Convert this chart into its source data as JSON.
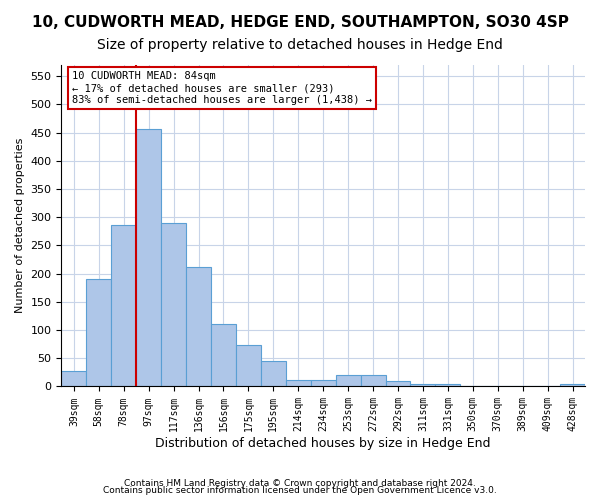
{
  "title1": "10, CUDWORTH MEAD, HEDGE END, SOUTHAMPTON, SO30 4SP",
  "title2": "Size of property relative to detached houses in Hedge End",
  "xlabel": "Distribution of detached houses by size in Hedge End",
  "ylabel": "Number of detached properties",
  "categories": [
    "39sqm",
    "58sqm",
    "78sqm",
    "97sqm",
    "117sqm",
    "136sqm",
    "156sqm",
    "175sqm",
    "195sqm",
    "214sqm",
    "234sqm",
    "253sqm",
    "272sqm",
    "292sqm",
    "311sqm",
    "331sqm",
    "350sqm",
    "370sqm",
    "389sqm",
    "409sqm",
    "428sqm"
  ],
  "values": [
    28,
    190,
    287,
    457,
    290,
    212,
    110,
    74,
    46,
    12,
    12,
    20,
    20,
    9,
    5,
    5,
    0,
    0,
    0,
    0,
    5
  ],
  "bar_color": "#aec6e8",
  "bar_edge_color": "#5a9fd4",
  "vline_x": 2.5,
  "vline_color": "#cc0000",
  "annotation_text": "10 CUDWORTH MEAD: 84sqm\n← 17% of detached houses are smaller (293)\n83% of semi-detached houses are larger (1,438) →",
  "annotation_box_color": "#ffffff",
  "annotation_box_edge": "#cc0000",
  "ylim": [
    0,
    570
  ],
  "yticks": [
    0,
    50,
    100,
    150,
    200,
    250,
    300,
    350,
    400,
    450,
    500,
    550
  ],
  "footnote1": "Contains HM Land Registry data © Crown copyright and database right 2024.",
  "footnote2": "Contains public sector information licensed under the Open Government Licence v3.0.",
  "background_color": "#ffffff",
  "grid_color": "#c8d4e8",
  "title_fontsize": 11,
  "subtitle_fontsize": 10
}
